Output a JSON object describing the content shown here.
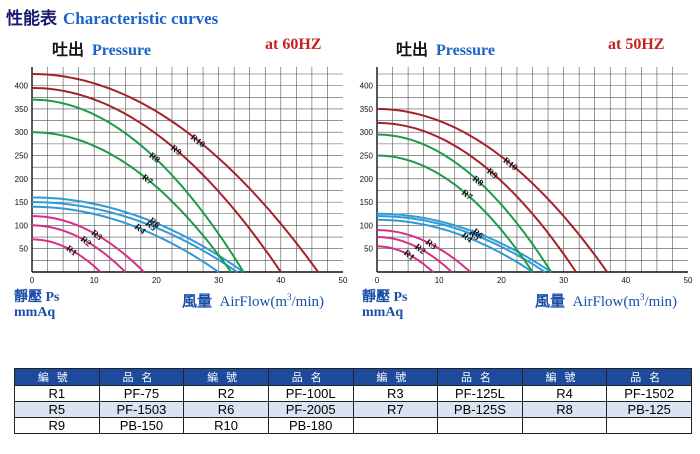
{
  "header": {
    "title_zh": "性能表",
    "title_en": "Characteristic curves"
  },
  "panels": [
    {
      "pressure_zh": "吐出",
      "pressure_en": "Pressure",
      "freq": "at  60HZ"
    },
    {
      "pressure_zh": "吐出",
      "pressure_en": "Pressure",
      "freq": "at  50HZ"
    }
  ],
  "axis": {
    "ylabel_zh": "靜壓",
    "ylabel_en": "Ps",
    "yunit": "mmAq",
    "xlabel_zh": "風量",
    "xlabel_en": "AirFlow(m",
    "xlabel_sup": "3",
    "xlabel_end": "/min)"
  },
  "chart_data": [
    {
      "type": "line",
      "title": "Characteristic curves at 60HZ",
      "xlabel": "AirFlow (m3/min)",
      "ylabel": "Ps mmAq",
      "xlim": [
        0,
        50
      ],
      "ylim": [
        0,
        440
      ],
      "xticks": [
        0,
        10,
        20,
        30,
        40,
        50
      ],
      "yticks": [
        50,
        100,
        150,
        200,
        250,
        300,
        350,
        400
      ],
      "grid": true,
      "series": [
        {
          "name": "R1",
          "color": "#d62f84",
          "shutoff": 70,
          "max_flow": 11
        },
        {
          "name": "R2",
          "color": "#d62f84",
          "shutoff": 100,
          "max_flow": 15
        },
        {
          "name": "R3",
          "color": "#d62f84",
          "shutoff": 120,
          "max_flow": 18
        },
        {
          "name": "R4",
          "color": "#2f9ad6",
          "shutoff": 140,
          "max_flow": 30
        },
        {
          "name": "R5",
          "color": "#2f9ad6",
          "shutoff": 150,
          "max_flow": 33
        },
        {
          "name": "R6",
          "color": "#2f9ad6",
          "shutoff": 160,
          "max_flow": 34
        },
        {
          "name": "R7",
          "color": "#1e9a48",
          "shutoff": 300,
          "max_flow": 32
        },
        {
          "name": "R8",
          "color": "#1e9a48",
          "shutoff": 370,
          "max_flow": 34
        },
        {
          "name": "R9",
          "color": "#a5222a",
          "shutoff": 395,
          "max_flow": 40
        },
        {
          "name": "R10",
          "color": "#a5222a",
          "shutoff": 425,
          "max_flow": 46
        }
      ]
    },
    {
      "type": "line",
      "title": "Characteristic curves at 50HZ",
      "xlabel": "AirFlow (m3/min)",
      "ylabel": "Ps mmAq",
      "xlim": [
        0,
        50
      ],
      "ylim": [
        0,
        440
      ],
      "xticks": [
        0,
        10,
        20,
        30,
        40,
        50
      ],
      "yticks": [
        50,
        100,
        150,
        200,
        250,
        300,
        350,
        400
      ],
      "grid": true,
      "series": [
        {
          "name": "R1",
          "color": "#d62f84",
          "shutoff": 55,
          "max_flow": 9
        },
        {
          "name": "R2",
          "color": "#d62f84",
          "shutoff": 75,
          "max_flow": 12
        },
        {
          "name": "R3",
          "color": "#d62f84",
          "shutoff": 90,
          "max_flow": 15
        },
        {
          "name": "R4",
          "color": "#2f9ad6",
          "shutoff": 112,
          "max_flow": 25
        },
        {
          "name": "R5",
          "color": "#2f9ad6",
          "shutoff": 120,
          "max_flow": 27
        },
        {
          "name": "R6",
          "color": "#2f9ad6",
          "shutoff": 125,
          "max_flow": 28
        },
        {
          "name": "R7",
          "color": "#1e9a48",
          "shutoff": 250,
          "max_flow": 25
        },
        {
          "name": "R8",
          "color": "#1e9a48",
          "shutoff": 295,
          "max_flow": 28
        },
        {
          "name": "R9",
          "color": "#a5222a",
          "shutoff": 320,
          "max_flow": 32
        },
        {
          "name": "R10",
          "color": "#a5222a",
          "shutoff": 350,
          "max_flow": 37
        }
      ]
    }
  ],
  "table": {
    "header": [
      "編號",
      "品名",
      "編號",
      "品名",
      "編號",
      "品名",
      "編號",
      "品名"
    ],
    "rows": [
      [
        "R1",
        "PF-75",
        "R2",
        "PF-100L",
        "R3",
        "PF-125L",
        "R4",
        "PF-1502"
      ],
      [
        "R5",
        "PF-1503",
        "R6",
        "PF-2005",
        "R7",
        "PB-125S",
        "R8",
        "PB-125"
      ],
      [
        "R9",
        "PB-150",
        "R10",
        "PB-180",
        "",
        "",
        "",
        ""
      ]
    ]
  }
}
